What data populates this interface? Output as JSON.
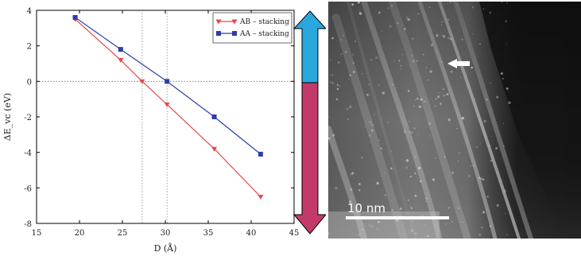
{
  "chart_data": {
    "type": "line",
    "title": "",
    "xlabel": "D (Å)",
    "ylabel": "ΔE_vc (eV)",
    "xlim": [
      15,
      45
    ],
    "ylim": [
      -8,
      4
    ],
    "xticks": [
      15,
      20,
      25,
      30,
      35,
      40,
      45
    ],
    "yticks": [
      4,
      2,
      0,
      -2,
      -4,
      -6,
      -8
    ],
    "grid": false,
    "reference_lines": {
      "x": [
        27.3,
        30.2
      ],
      "y": [
        0
      ]
    },
    "legend_position": "top-right",
    "series": [
      {
        "name": "AB – stacking",
        "color": "#e8474a",
        "marker": "triangle-down",
        "x": [
          19.5,
          24.8,
          27.3,
          30.2,
          35.7,
          41.1
        ],
        "y": [
          3.5,
          1.2,
          0.0,
          -1.3,
          -3.8,
          -6.5
        ]
      },
      {
        "name": "AA – stacking",
        "color": "#2b3ea8",
        "marker": "square",
        "x": [
          19.5,
          24.8,
          30.2,
          35.7,
          41.1
        ],
        "y": [
          3.6,
          1.8,
          0.0,
          -2.0,
          -4.1
        ]
      }
    ]
  },
  "arrow": {
    "top_color": "#2aa7dd",
    "bottom_color": "#c23a6a"
  },
  "micrograph": {
    "scale_label": "10 nm"
  }
}
